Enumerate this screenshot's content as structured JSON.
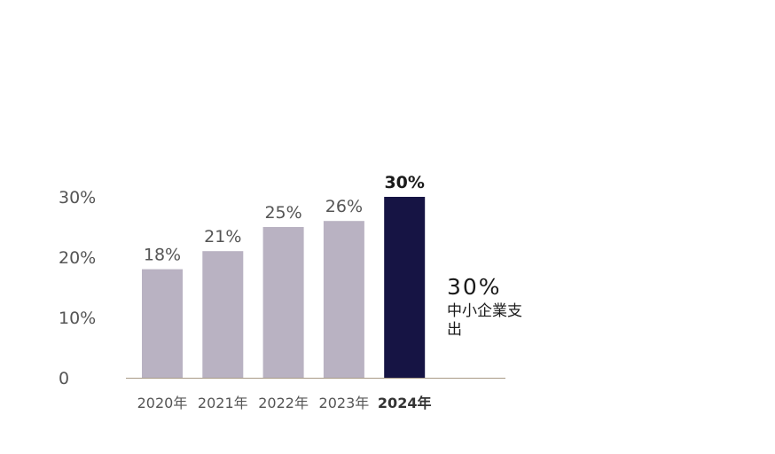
{
  "chart_data": {
    "type": "bar",
    "categories": [
      "2020年",
      "2021年",
      "2022年",
      "2023年",
      "2024年"
    ],
    "values": [
      18,
      21,
      25,
      26,
      30
    ],
    "data_labels": [
      "18%",
      "21%",
      "25%",
      "26%",
      "30%"
    ],
    "highlight_index": 4,
    "y_ticks": [
      {
        "value": 0,
        "label": "0"
      },
      {
        "value": 10,
        "label": "10%"
      },
      {
        "value": 20,
        "label": "20%"
      },
      {
        "value": 30,
        "label": "30%"
      }
    ],
    "ylim": [
      0,
      30
    ],
    "grid": false,
    "colors": {
      "bar": "#b9b2c2",
      "highlight": "#161444",
      "baseline": "#a89a86",
      "tick_text": "#555555",
      "label_text": "#555555",
      "highlight_text": "#1a1a1a"
    }
  },
  "callout": {
    "value": "30%",
    "label": "中小企業支出"
  }
}
